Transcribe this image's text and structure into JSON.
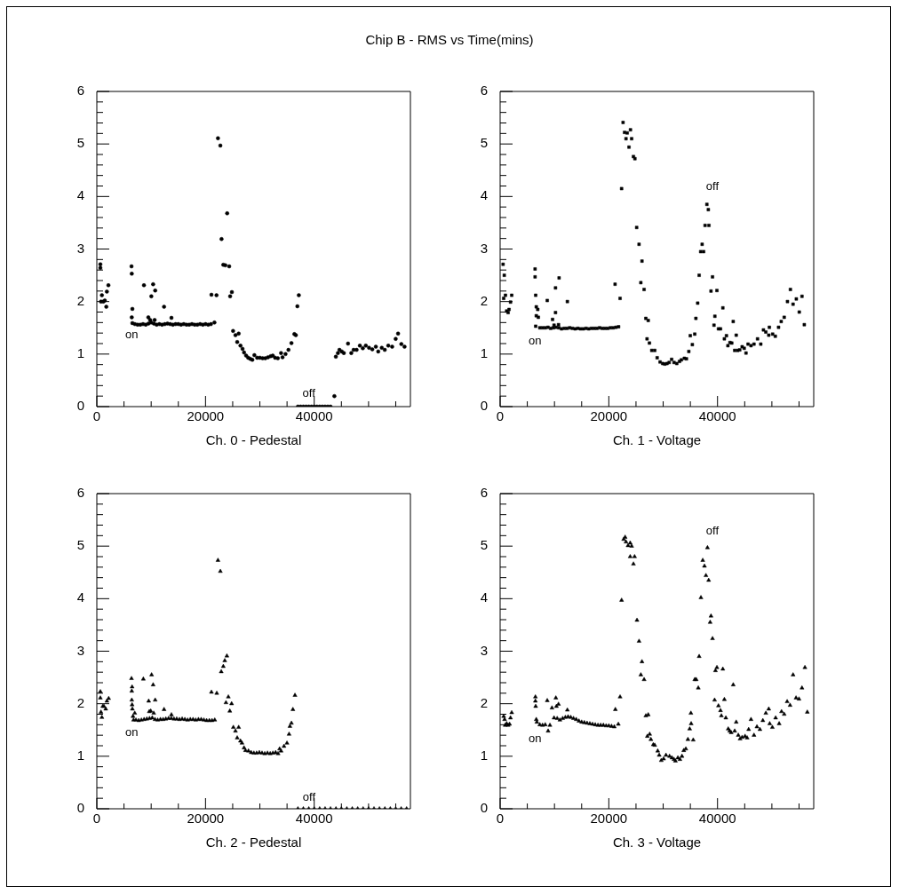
{
  "chart_data": [
    {
      "type": "scatter",
      "title": "Chip B - RMS vs Time(mins)",
      "xlabel": "Ch. 0 - Pedestal",
      "color": "#000000",
      "marker": "circle",
      "xlim": [
        0,
        57700
      ],
      "ylim": [
        0,
        6
      ],
      "xticks": [
        0,
        {
          "value": 5000,
          "label": null
        },
        {
          "value": 10000,
          "label": null
        },
        {
          "value": 15000,
          "label": null
        },
        20000,
        {
          "value": 25000,
          "label": null
        },
        {
          "value": 30000,
          "label": null
        },
        {
          "value": 35000,
          "label": null
        },
        40000,
        {
          "value": 45000,
          "label": null
        },
        {
          "value": 50000,
          "label": null
        },
        {
          "value": 55000,
          "label": null
        }
      ],
      "yticks": [
        0,
        {
          "value": 0.2,
          "label": null
        },
        {
          "value": 0.4,
          "label": null
        },
        {
          "value": 0.6,
          "label": null
        },
        {
          "value": 0.8,
          "label": null
        },
        1,
        {
          "value": 1.2,
          "label": null
        },
        {
          "value": 1.4,
          "label": null
        },
        {
          "value": 1.6,
          "label": null
        },
        {
          "value": 1.8,
          "label": null
        },
        2,
        {
          "value": 2.2,
          "label": null
        },
        {
          "value": 2.4,
          "label": null
        },
        {
          "value": 2.6,
          "label": null
        },
        {
          "value": 2.8,
          "label": null
        },
        3,
        {
          "value": 3.2,
          "label": null
        },
        {
          "value": 3.4,
          "label": null
        },
        {
          "value": 3.6,
          "label": null
        },
        {
          "value": 3.8,
          "label": null
        },
        4,
        {
          "value": 4.2,
          "label": null
        },
        {
          "value": 4.4,
          "label": null
        },
        {
          "value": 4.6,
          "label": null
        },
        {
          "value": 4.8,
          "label": null
        },
        5,
        {
          "value": 5.2,
          "label": null
        },
        {
          "value": 5.4,
          "label": null
        },
        {
          "value": 5.6,
          "label": null
        },
        {
          "value": 5.8,
          "label": null
        },
        6
      ],
      "annotations": [
        "on",
        "off"
      ],
      "x": [
        650,
        650,
        930,
        760,
        1200,
        1470,
        1740,
        1850,
        2130,
        6380,
        6430,
        6540,
        6430,
        6540,
        8670,
        10030,
        10360,
        10740,
        9480,
        9810,
        10630,
        12370,
        13730,
        7000,
        7500,
        8000,
        8500,
        9000,
        9500,
        10000,
        10500,
        11000,
        11500,
        12000,
        12500,
        13000,
        13500,
        14000,
        14500,
        15000,
        15500,
        16000,
        16500,
        17000,
        17500,
        18000,
        18500,
        19000,
        19500,
        20000,
        20500,
        21000,
        21640,
        21090,
        22020,
        22290,
        22730,
        22950,
        23270,
        23650,
        23980,
        24360,
        24530,
        24850,
        25070,
        25510,
        25830,
        26100,
        26430,
        26810,
        27090,
        27470,
        27850,
        28230,
        28610,
        28990,
        29500,
        30000,
        30500,
        31000,
        31500,
        32000,
        32370,
        32800,
        33300,
        33900,
        34170,
        34720,
        35260,
        35810,
        36350,
        36620,
        36900,
        37170,
        37000,
        37500,
        38000,
        38500,
        39000,
        39500,
        40000,
        40500,
        41000,
        41500,
        42000,
        42500,
        43000,
        43710,
        43980,
        44360,
        44640,
        45070,
        45450,
        46220,
        46820,
        47250,
        47800,
        48400,
        48940,
        49490,
        50090,
        50690,
        51340,
        51780,
        52430,
        52980,
        53630,
        54340,
        54990,
        55430,
        56030,
        56620
      ],
      "values": [
        2.71,
        2.64,
        2.12,
        2.0,
        2.0,
        2.02,
        1.9,
        2.19,
        2.31,
        2.67,
        2.53,
        1.86,
        1.7,
        1.59,
        2.31,
        2.1,
        2.33,
        2.21,
        1.7,
        1.65,
        1.65,
        1.9,
        1.69,
        1.57,
        1.56,
        1.56,
        1.57,
        1.56,
        1.58,
        1.6,
        1.58,
        1.56,
        1.57,
        1.56,
        1.57,
        1.58,
        1.57,
        1.56,
        1.57,
        1.57,
        1.56,
        1.57,
        1.56,
        1.56,
        1.57,
        1.56,
        1.56,
        1.57,
        1.56,
        1.57,
        1.56,
        1.57,
        1.6,
        2.13,
        2.12,
        5.11,
        4.97,
        3.19,
        2.7,
        2.69,
        3.68,
        2.67,
        2.1,
        2.18,
        1.44,
        1.36,
        1.23,
        1.39,
        1.16,
        1.1,
        1.03,
        0.97,
        0.93,
        0.91,
        0.89,
        0.98,
        0.93,
        0.93,
        0.92,
        0.92,
        0.94,
        0.96,
        0.97,
        0.93,
        0.92,
        1.02,
        0.94,
        1.0,
        1.08,
        1.21,
        1.38,
        1.36,
        1.91,
        2.12,
        0,
        0,
        0,
        0,
        0,
        0,
        0,
        0,
        0,
        0,
        0,
        0,
        0,
        0.2,
        0.95,
        1.02,
        1.08,
        1.05,
        1.02,
        1.2,
        1.02,
        1.08,
        1.08,
        1.16,
        1.11,
        1.16,
        1.12,
        1.09,
        1.14,
        1.05,
        1.12,
        1.08,
        1.16,
        1.14,
        1.29,
        1.39,
        1.19,
        1.14
      ]
    },
    {
      "type": "scatter",
      "xlabel": "Ch. 1 - Voltage",
      "color": "#000000",
      "marker": "square",
      "xlim": [
        0,
        57700
      ],
      "ylim": [
        0,
        6
      ],
      "xticks": [
        0,
        {
          "value": 5000,
          "label": null
        },
        {
          "value": 10000,
          "label": null
        },
        {
          "value": 15000,
          "label": null
        },
        20000,
        {
          "value": 25000,
          "label": null
        },
        {
          "value": 30000,
          "label": null
        },
        {
          "value": 35000,
          "label": null
        },
        40000,
        {
          "value": 45000,
          "label": null
        },
        {
          "value": 50000,
          "label": null
        },
        {
          "value": 55000,
          "label": null
        }
      ],
      "yticks": [
        0,
        {
          "value": 0.2,
          "label": null
        },
        {
          "value": 0.4,
          "label": null
        },
        {
          "value": 0.6,
          "label": null
        },
        {
          "value": 0.8,
          "label": null
        },
        1,
        {
          "value": 1.2,
          "label": null
        },
        {
          "value": 1.4,
          "label": null
        },
        {
          "value": 1.6,
          "label": null
        },
        {
          "value": 1.8,
          "label": null
        },
        2,
        {
          "value": 2.2,
          "label": null
        },
        {
          "value": 2.4,
          "label": null
        },
        {
          "value": 2.6,
          "label": null
        },
        {
          "value": 2.8,
          "label": null
        },
        3,
        {
          "value": 3.2,
          "label": null
        },
        {
          "value": 3.4,
          "label": null
        },
        {
          "value": 3.6,
          "label": null
        },
        {
          "value": 3.8,
          "label": null
        },
        4,
        {
          "value": 4.2,
          "label": null
        },
        {
          "value": 4.4,
          "label": null
        },
        {
          "value": 4.6,
          "label": null
        },
        {
          "value": 4.8,
          "label": null
        },
        5,
        {
          "value": 5.2,
          "label": null
        },
        {
          "value": 5.4,
          "label": null
        },
        {
          "value": 5.6,
          "label": null
        },
        {
          "value": 5.8,
          "label": null
        },
        6
      ],
      "annotations": [
        "on",
        "off"
      ],
      "x": [
        545,
        760,
        650,
        980,
        1200,
        1470,
        1640,
        1910,
        2130,
        6430,
        6430,
        6540,
        6650,
        6650,
        6920,
        7030,
        6540,
        8670,
        9650,
        10190,
        10190,
        10850,
        12370,
        9920,
        10740,
        7300,
        7800,
        8300,
        8800,
        9300,
        9800,
        10300,
        10800,
        11300,
        11800,
        12300,
        12800,
        13300,
        13800,
        14300,
        14800,
        15300,
        15800,
        16300,
        16800,
        17300,
        17800,
        18300,
        18800,
        19300,
        19800,
        20300,
        20800,
        21300,
        21150,
        22070,
        21800,
        22350,
        22620,
        22890,
        23160,
        23380,
        23710,
        23980,
        24200,
        24530,
        24800,
        25120,
        25560,
        26100,
        25890,
        26490,
        26810,
        27250,
        27030,
        27470,
        27900,
        28450,
        28890,
        29430,
        29900,
        30300,
        30700,
        31100,
        31560,
        32000,
        32500,
        33000,
        33350,
        33900,
        34280,
        34720,
        34990,
        35370,
        35810,
        36020,
        36350,
        36620,
        36900,
        37170,
        37440,
        37710,
        38040,
        38310,
        38420,
        39080,
        38800,
        39510,
        39890,
        39350,
        40170,
        40550,
        40980,
        41260,
        41640,
        41910,
        42290,
        42620,
        42890,
        43160,
        43440,
        43710,
        44090,
        44530,
        44910,
        45240,
        45620,
        46160,
        46710,
        47360,
        47960,
        48450,
        48890,
        49540,
        49430,
        50140,
        50630,
        51230,
        51720,
        52270,
        52870,
        53410,
        53900,
        54500,
        55040,
        55540,
        55970
      ],
      "values": [
        2.71,
        2.5,
        2.06,
        2.12,
        1.82,
        1.79,
        1.85,
        1.99,
        2.12,
        2.62,
        2.47,
        2.12,
        1.9,
        1.73,
        1.85,
        1.7,
        1.53,
        2.02,
        1.66,
        2.26,
        1.79,
        2.45,
        2.0,
        1.55,
        1.56,
        1.5,
        1.5,
        1.5,
        1.51,
        1.49,
        1.5,
        1.51,
        1.5,
        1.48,
        1.49,
        1.49,
        1.5,
        1.49,
        1.48,
        1.49,
        1.48,
        1.48,
        1.49,
        1.48,
        1.49,
        1.49,
        1.49,
        1.5,
        1.49,
        1.49,
        1.49,
        1.5,
        1.5,
        1.51,
        2.33,
        2.06,
        1.52,
        4.15,
        5.41,
        5.22,
        5.1,
        5.21,
        4.94,
        5.27,
        5.1,
        4.76,
        4.72,
        3.41,
        3.09,
        2.77,
        2.36,
        2.23,
        1.68,
        1.64,
        1.29,
        1.21,
        1.07,
        1.07,
        0.93,
        0.85,
        0.82,
        0.81,
        0.82,
        0.84,
        0.9,
        0.84,
        0.82,
        0.86,
        0.89,
        0.92,
        0.91,
        1.05,
        1.35,
        1.18,
        1.38,
        1.68,
        1.97,
        2.5,
        2.95,
        3.09,
        2.95,
        3.45,
        3.85,
        3.75,
        3.45,
        2.47,
        2.2,
        1.72,
        2.21,
        1.55,
        1.48,
        1.48,
        1.88,
        1.29,
        1.35,
        1.16,
        1.22,
        1.21,
        1.62,
        1.07,
        1.36,
        1.07,
        1.08,
        1.14,
        1.11,
        1.02,
        1.19,
        1.16,
        1.19,
        1.29,
        1.19,
        1.46,
        1.42,
        1.51,
        1.36,
        1.38,
        1.34,
        1.51,
        1.62,
        1.7,
        2.0,
        2.23,
        1.95,
        2.05,
        1.8,
        2.1,
        1.56
      ]
    },
    {
      "type": "scatter",
      "xlabel": "Ch. 2 - Pedestal",
      "color": "#000000",
      "marker": "triangle",
      "xlim": [
        0,
        57700
      ],
      "ylim": [
        0,
        6
      ],
      "xticks": [
        0,
        {
          "value": 5000,
          "label": null
        },
        {
          "value": 10000,
          "label": null
        },
        {
          "value": 15000,
          "label": null
        },
        20000,
        {
          "value": 25000,
          "label": null
        },
        {
          "value": 30000,
          "label": null
        },
        {
          "value": 35000,
          "label": null
        },
        40000,
        {
          "value": 45000,
          "label": null
        },
        {
          "value": 50000,
          "label": null
        },
        {
          "value": 55000,
          "label": null
        }
      ],
      "yticks": [
        0,
        {
          "value": 0.2,
          "label": null
        },
        {
          "value": 0.4,
          "label": null
        },
        {
          "value": 0.6,
          "label": null
        },
        {
          "value": 0.8,
          "label": null
        },
        1,
        {
          "value": 1.2,
          "label": null
        },
        {
          "value": 1.4,
          "label": null
        },
        {
          "value": 1.6,
          "label": null
        },
        {
          "value": 1.8,
          "label": null
        },
        2,
        {
          "value": 2.2,
          "label": null
        },
        {
          "value": 2.4,
          "label": null
        },
        {
          "value": 2.6,
          "label": null
        },
        {
          "value": 2.8,
          "label": null
        },
        3,
        {
          "value": 3.2,
          "label": null
        },
        {
          "value": 3.4,
          "label": null
        },
        {
          "value": 3.6,
          "label": null
        },
        {
          "value": 3.8,
          "label": null
        },
        4,
        {
          "value": 4.2,
          "label": null
        },
        {
          "value": 4.4,
          "label": null
        },
        {
          "value": 4.6,
          "label": null
        },
        {
          "value": 4.8,
          "label": null
        },
        5,
        {
          "value": 5.2,
          "label": null
        },
        {
          "value": 5.4,
          "label": null
        },
        {
          "value": 5.6,
          "label": null
        },
        {
          "value": 5.8,
          "label": null
        },
        6
      ],
      "annotations": [
        "on",
        "off"
      ],
      "x": [
        650,
        650,
        760,
        930,
        1090,
        1310,
        1640,
        1850,
        2180,
        6380,
        6490,
        6430,
        6430,
        6490,
        6540,
        6650,
        6980,
        6760,
        8560,
        9540,
        10080,
        10360,
        10740,
        9650,
        9920,
        10470,
        12370,
        13730,
        7200,
        7700,
        8200,
        8700,
        9200,
        9700,
        10200,
        10700,
        11200,
        11700,
        12200,
        12700,
        13200,
        13700,
        14200,
        14700,
        15200,
        15700,
        16200,
        16700,
        17200,
        17700,
        18200,
        18700,
        19200,
        19700,
        20200,
        20700,
        21200,
        21700,
        21090,
        22070,
        22290,
        22730,
        22890,
        23270,
        23540,
        23930,
        23760,
        24200,
        24470,
        24800,
        25120,
        25510,
        25830,
        26100,
        26430,
        26710,
        27090,
        27360,
        27900,
        28400,
        28900,
        29400,
        29900,
        30400,
        30900,
        31400,
        31900,
        32400,
        32900,
        33350,
        33630,
        33900,
        34440,
        34990,
        35370,
        35530,
        35810,
        36080,
        36460,
        37000,
        38000,
        39000,
        40000,
        41000,
        42000,
        43000,
        44000,
        45000,
        46000,
        47000,
        48000,
        49000,
        50000,
        51000,
        52000,
        53000,
        54000,
        55000,
        56000,
        57000
      ],
      "values": [
        2.23,
        2.11,
        1.84,
        1.74,
        1.95,
        1.95,
        1.9,
        2.05,
        2.1,
        2.48,
        2.32,
        2.24,
        2.07,
        1.98,
        1.9,
        1.76,
        1.82,
        1.69,
        2.47,
        2.05,
        2.55,
        2.36,
        2.07,
        1.85,
        1.86,
        1.82,
        1.89,
        1.79,
        1.69,
        1.68,
        1.69,
        1.7,
        1.71,
        1.72,
        1.73,
        1.7,
        1.69,
        1.7,
        1.7,
        1.71,
        1.72,
        1.72,
        1.71,
        1.71,
        1.7,
        1.71,
        1.7,
        1.69,
        1.7,
        1.7,
        1.69,
        1.7,
        1.7,
        1.69,
        1.68,
        1.68,
        1.68,
        1.69,
        2.22,
        2.2,
        4.73,
        4.52,
        2.61,
        2.71,
        2.82,
        2.91,
        2.02,
        2.13,
        1.86,
        2.0,
        1.55,
        1.48,
        1.35,
        1.55,
        1.29,
        1.25,
        1.16,
        1.11,
        1.1,
        1.07,
        1.06,
        1.06,
        1.07,
        1.06,
        1.05,
        1.06,
        1.05,
        1.06,
        1.07,
        1.05,
        1.14,
        1.1,
        1.19,
        1.25,
        1.42,
        1.57,
        1.63,
        1.89,
        2.16,
        0,
        0,
        0,
        0,
        0,
        0,
        0,
        0,
        0,
        0,
        0,
        0,
        0,
        0,
        0,
        0,
        0,
        0,
        0,
        0,
        0
      ]
    },
    {
      "type": "scatter",
      "xlabel": "Ch. 3 - Voltage",
      "color": "#000000",
      "marker": "triangle",
      "xlim": [
        0,
        57700
      ],
      "ylim": [
        0,
        6
      ],
      "xticks": [
        0,
        {
          "value": 5000,
          "label": null
        },
        {
          "value": 10000,
          "label": null
        },
        {
          "value": 15000,
          "label": null
        },
        20000,
        {
          "value": 25000,
          "label": null
        },
        {
          "value": 30000,
          "label": null
        },
        {
          "value": 35000,
          "label": null
        },
        40000,
        {
          "value": 45000,
          "label": null
        },
        {
          "value": 50000,
          "label": null
        },
        {
          "value": 55000,
          "label": null
        }
      ],
      "yticks": [
        0,
        {
          "value": 0.2,
          "label": null
        },
        {
          "value": 0.4,
          "label": null
        },
        {
          "value": 0.6,
          "label": null
        },
        {
          "value": 0.8,
          "label": null
        },
        1,
        {
          "value": 1.2,
          "label": null
        },
        {
          "value": 1.4,
          "label": null
        },
        {
          "value": 1.6,
          "label": null
        },
        {
          "value": 1.8,
          "label": null
        },
        2,
        {
          "value": 2.2,
          "label": null
        },
        {
          "value": 2.4,
          "label": null
        },
        {
          "value": 2.6,
          "label": null
        },
        {
          "value": 2.8,
          "label": null
        },
        3,
        {
          "value": 3.2,
          "label": null
        },
        {
          "value": 3.4,
          "label": null
        },
        {
          "value": 3.6,
          "label": null
        },
        {
          "value": 3.8,
          "label": null
        },
        4,
        {
          "value": 4.2,
          "label": null
        },
        {
          "value": 4.4,
          "label": null
        },
        {
          "value": 4.6,
          "label": null
        },
        {
          "value": 4.8,
          "label": null
        },
        5,
        {
          "value": 5.2,
          "label": null
        },
        {
          "value": 5.4,
          "label": null
        },
        {
          "value": 5.6,
          "label": null
        },
        {
          "value": 5.8,
          "label": null
        },
        6
      ],
      "annotations": [
        "on",
        "off"
      ],
      "x": [
        650,
        820,
        930,
        1200,
        1470,
        1740,
        1910,
        2130,
        6490,
        6490,
        6540,
        6650,
        6760,
        7300,
        7800,
        8300,
        8670,
        8830,
        9160,
        9540,
        9920,
        10250,
        10360,
        10740,
        12370,
        10500,
        11000,
        11500,
        12000,
        12500,
        13000,
        13500,
        14000,
        14500,
        15000,
        15500,
        16000,
        16500,
        17000,
        17500,
        18000,
        18500,
        19000,
        19500,
        20000,
        20500,
        21000,
        21200,
        21750,
        22070,
        22350,
        22730,
        23000,
        23160,
        23540,
        23930,
        24200,
        23930,
        24740,
        24530,
        25180,
        25560,
        26100,
        25890,
        26490,
        26810,
        27250,
        27090,
        27520,
        27740,
        28180,
        28450,
        29000,
        29270,
        29650,
        30080,
        30520,
        31170,
        31610,
        31990,
        32260,
        32700,
        33080,
        33460,
        33790,
        34170,
        34550,
        34880,
        35150,
        35100,
        35530,
        35810,
        36080,
        36460,
        36620,
        36950,
        37280,
        37600,
        37870,
        38370,
        38150,
        38800,
        38640,
        39080,
        39460,
        39620,
        39890,
        40170,
        40550,
        40710,
        40980,
        41260,
        41530,
        41970,
        42240,
        42510,
        42890,
        43160,
        43440,
        43820,
        44150,
        44530,
        45070,
        45450,
        45730,
        46160,
        46710,
        47250,
        47800,
        48340,
        48890,
        49430,
        49600,
        50090,
        50690,
        51340,
        51780,
        52270,
        52810,
        53350,
        53900,
        54450,
        54990,
        55540,
        56080,
        56520
      ],
      "values": [
        1.76,
        1.7,
        1.59,
        1.62,
        1.59,
        1.61,
        1.73,
        1.83,
        2.13,
        2.05,
        1.95,
        1.7,
        1.65,
        1.6,
        1.59,
        1.6,
        2.06,
        1.48,
        1.59,
        1.92,
        1.73,
        2.11,
        1.95,
        1.99,
        1.88,
        1.72,
        1.69,
        1.72,
        1.74,
        1.75,
        1.74,
        1.72,
        1.7,
        1.67,
        1.65,
        1.64,
        1.63,
        1.62,
        1.61,
        1.6,
        1.59,
        1.59,
        1.59,
        1.58,
        1.58,
        1.57,
        1.56,
        1.89,
        1.61,
        2.13,
        3.97,
        5.13,
        5.17,
        5.08,
        5.01,
        5.06,
        5.0,
        4.8,
        4.8,
        4.66,
        3.59,
        3.19,
        2.8,
        2.55,
        2.46,
        1.77,
        1.79,
        1.38,
        1.42,
        1.32,
        1.22,
        1.21,
        1.1,
        1.02,
        0.92,
        0.95,
        1.02,
        1.0,
        0.97,
        0.94,
        0.91,
        0.97,
        0.94,
        1.0,
        1.11,
        1.14,
        1.32,
        1.52,
        1.62,
        1.82,
        1.31,
        2.46,
        2.46,
        2.3,
        2.9,
        4.02,
        4.73,
        4.62,
        4.44,
        4.35,
        4.97,
        3.67,
        3.55,
        3.24,
        2.07,
        2.63,
        2.69,
        1.96,
        1.87,
        1.77,
        2.66,
        2.08,
        1.73,
        1.52,
        1.48,
        1.45,
        2.36,
        1.48,
        1.65,
        1.4,
        1.33,
        1.36,
        1.38,
        1.35,
        1.51,
        1.7,
        1.4,
        1.56,
        1.51,
        1.68,
        1.82,
        1.9,
        1.62,
        1.55,
        1.73,
        1.62,
        1.85,
        1.8,
        2.04,
        1.97,
        2.55,
        2.11,
        2.09,
        2.3,
        2.69,
        1.84
      ]
    }
  ]
}
